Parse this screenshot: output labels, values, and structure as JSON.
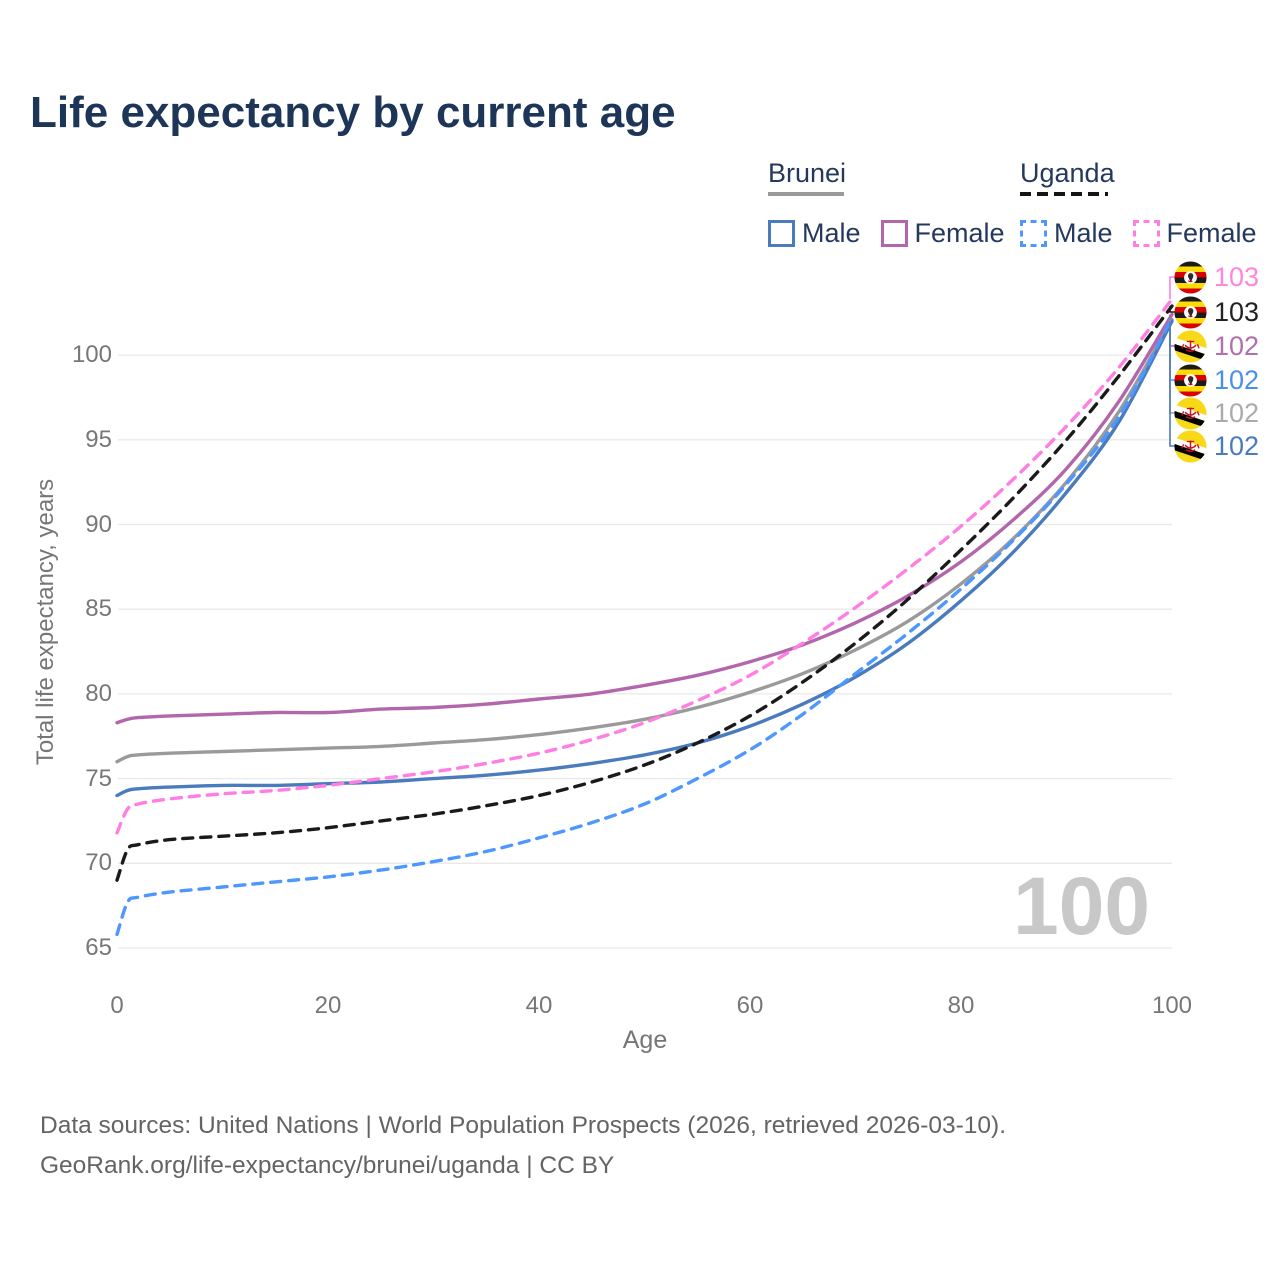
{
  "title": "Life expectancy by current age",
  "legend": {
    "groups": [
      {
        "name": "Brunei",
        "line_style": "solid",
        "underline_color": "#9a9a9a",
        "items": [
          {
            "label": "Male",
            "color": "#4a7bbd"
          },
          {
            "label": "Female",
            "color": "#b266ab"
          }
        ]
      },
      {
        "name": "Uganda",
        "line_style": "dashed",
        "underline_color": "#141414",
        "items": [
          {
            "label": "Male",
            "color": "#4d97ff"
          },
          {
            "label": "Female",
            "color": "#ff7ee3"
          }
        ]
      }
    ]
  },
  "colors": {
    "background": "#ffffff",
    "grid": "#e9e9e9",
    "axis_text": "#777777",
    "title_text": "#1d3557",
    "watermark_text": "#c8c8c8",
    "footer_text": "#646464"
  },
  "chart_data": {
    "type": "line",
    "title": "Life expectancy by current age",
    "xlabel": "Age",
    "ylabel": "Total life expectancy, years",
    "xlim": [
      0,
      100
    ],
    "ylim": [
      65,
      103.5
    ],
    "x_ticks": [
      0,
      20,
      40,
      60,
      80,
      100
    ],
    "y_ticks": [
      100,
      95,
      90,
      85,
      80,
      75,
      70,
      65
    ],
    "grid": "horizontal",
    "legend_position": "top-right",
    "watermark": "100",
    "ages": [
      0,
      1,
      2,
      5,
      10,
      15,
      20,
      25,
      30,
      35,
      40,
      45,
      50,
      55,
      60,
      65,
      70,
      75,
      80,
      85,
      90,
      95,
      100
    ],
    "series": [
      {
        "name": "Brunei",
        "country": "Brunei",
        "sex": "Both",
        "line_style": "solid",
        "color": "#9a9a9a",
        "end_label": "102",
        "end_label_color": "#ababab",
        "flag": "brunei",
        "values": [
          76.0,
          76.3,
          76.4,
          76.5,
          76.6,
          76.7,
          76.8,
          76.9,
          77.1,
          77.3,
          77.6,
          78.0,
          78.5,
          79.2,
          80.1,
          81.2,
          82.6,
          84.3,
          86.5,
          89.2,
          92.5,
          96.7,
          102.1
        ]
      },
      {
        "name": "Brunei Male",
        "country": "Brunei",
        "sex": "Male",
        "line_style": "solid",
        "color": "#4a7bbd",
        "end_label": "102",
        "end_label_color": "#4a7bbd",
        "flag": "brunei",
        "values": [
          74.0,
          74.3,
          74.4,
          74.5,
          74.6,
          74.6,
          74.7,
          74.8,
          75.0,
          75.2,
          75.5,
          75.9,
          76.4,
          77.1,
          78.1,
          79.4,
          81.0,
          83.0,
          85.5,
          88.4,
          91.9,
          96.1,
          102.0
        ]
      },
      {
        "name": "Brunei Female",
        "country": "Brunei",
        "sex": "Female",
        "line_style": "solid",
        "color": "#b266ab",
        "end_label": "102",
        "end_label_color": "#b26fae",
        "flag": "brunei",
        "values": [
          78.3,
          78.5,
          78.6,
          78.7,
          78.8,
          78.9,
          78.9,
          79.1,
          79.2,
          79.4,
          79.7,
          80.0,
          80.5,
          81.1,
          81.9,
          82.9,
          84.2,
          85.8,
          87.8,
          90.3,
          93.3,
          97.3,
          102.4
        ]
      },
      {
        "name": "Uganda Male",
        "country": "Uganda",
        "sex": "Male",
        "line_style": "dashed",
        "color": "#4d97ff",
        "end_label": "102",
        "end_label_color": "#4a90e8",
        "flag": "uganda",
        "values": [
          65.8,
          67.7,
          68.0,
          68.3,
          68.6,
          68.9,
          69.2,
          69.6,
          70.1,
          70.7,
          71.5,
          72.4,
          73.5,
          75.0,
          76.7,
          78.8,
          81.2,
          83.6,
          86.2,
          89.1,
          92.4,
          96.4,
          102.2
        ]
      },
      {
        "name": "Uganda",
        "country": "Uganda",
        "sex": "Both",
        "line_style": "dashed",
        "color": "#1a1a1a",
        "end_label": "103",
        "end_label_color": "#222222",
        "flag": "uganda",
        "values": [
          69.0,
          70.8,
          71.1,
          71.4,
          71.6,
          71.8,
          72.1,
          72.5,
          72.9,
          73.4,
          74.0,
          74.8,
          75.8,
          77.1,
          78.7,
          80.7,
          83.0,
          85.6,
          88.5,
          91.6,
          95.0,
          98.8,
          102.9
        ]
      },
      {
        "name": "Uganda Female",
        "country": "Uganda",
        "sex": "Female",
        "line_style": "dashed",
        "color": "#ff7ee3",
        "end_label": "103",
        "end_label_color": "#ff85dd",
        "flag": "uganda",
        "values": [
          71.8,
          73.2,
          73.5,
          73.8,
          74.1,
          74.3,
          74.6,
          75.0,
          75.4,
          75.9,
          76.5,
          77.3,
          78.3,
          79.6,
          81.1,
          83.0,
          85.1,
          87.4,
          89.9,
          92.7,
          95.8,
          99.3,
          103.3
        ]
      }
    ],
    "right_label_order": [
      "Uganda Female",
      "Uganda",
      "Brunei Female",
      "Uganda Male",
      "Brunei",
      "Brunei Male"
    ]
  },
  "footer": {
    "line1": "Data sources: United Nations | World Population Prospects (2026, retrieved 2026-03-10).",
    "line2": "GeoRank.org/life-expectancy/brunei/uganda | CC BY"
  }
}
